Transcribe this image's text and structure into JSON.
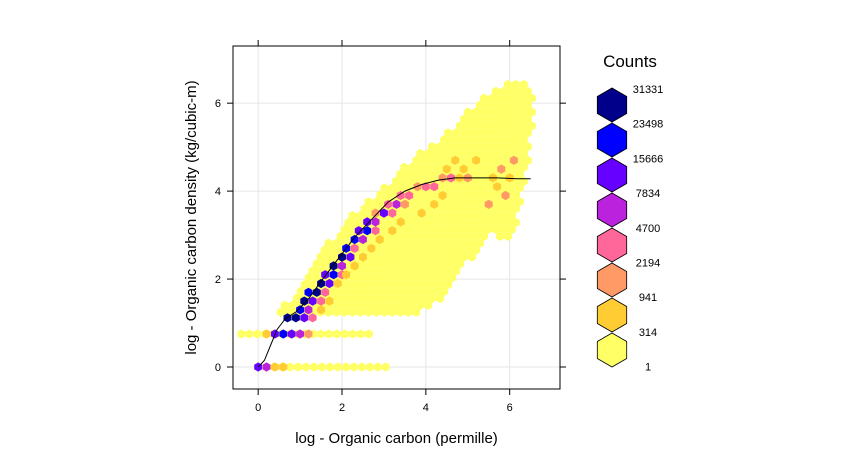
{
  "chart_data": {
    "type": "hexbin",
    "xlabel": "log - Organic carbon (permille)",
    "ylabel": "log - Organic carbon density (kg/cubic-m)",
    "xlim": [
      -0.6,
      7.2
    ],
    "ylim": [
      -0.5,
      7.3
    ],
    "xticks": [
      "0",
      "2",
      "4",
      "6"
    ],
    "xtick_values": [
      0,
      2,
      4,
      6
    ],
    "yticks": [
      "0",
      "2",
      "4",
      "6"
    ],
    "ytick_values": [
      0,
      2,
      4,
      6
    ],
    "grid": true,
    "legend": {
      "title": "Counts",
      "placement": "right",
      "breaks": [
        "31331",
        "23498",
        "15666",
        "7834",
        "4700",
        "2194",
        "941",
        "314",
        "1"
      ],
      "colors": [
        "#00008b",
        "#0000ff",
        "#6600ff",
        "#bb22dd",
        "#ff6699",
        "#ff9966",
        "#ffcc33",
        "#ffff66"
      ]
    },
    "cloud": {
      "description_points_polygon": [
        [
          0.35,
          1.1
        ],
        [
          0.7,
          1.5
        ],
        [
          1.2,
          2.2
        ],
        [
          1.8,
          3.0
        ],
        [
          2.4,
          3.6
        ],
        [
          3.0,
          4.1
        ],
        [
          3.6,
          4.7
        ],
        [
          4.2,
          5.1
        ],
        [
          4.8,
          5.6
        ],
        [
          5.4,
          6.2
        ],
        [
          5.9,
          6.5
        ],
        [
          6.4,
          6.5
        ],
        [
          6.6,
          6.3
        ],
        [
          6.5,
          5.0
        ],
        [
          6.2,
          3.2
        ],
        [
          6.1,
          2.9
        ],
        [
          5.6,
          3.0
        ],
        [
          5.1,
          2.5
        ],
        [
          4.6,
          1.8
        ],
        [
          4.2,
          1.4
        ],
        [
          3.5,
          1.1
        ],
        [
          2.5,
          1.1
        ],
        [
          1.5,
          1.1
        ],
        [
          0.8,
          1.1
        ]
      ],
      "fill_color": "#ffff66"
    },
    "rows": [
      {
        "y": 0.0,
        "x_start": 0.0,
        "x_end": 3.2,
        "color": "#ffff66"
      },
      {
        "y": 0.75,
        "x_start": -0.4,
        "x_end": 2.8,
        "color": "#ffff66"
      }
    ],
    "band": [
      {
        "x": 0.0,
        "y": 0.0,
        "color": "#6600ff"
      },
      {
        "x": 0.2,
        "y": 0.0,
        "color": "#bb22dd"
      },
      {
        "x": 0.4,
        "y": 0.0,
        "color": "#ffcc33"
      },
      {
        "x": 0.6,
        "y": 0.0,
        "color": "#ffcc33"
      },
      {
        "x": 0.2,
        "y": 0.75,
        "color": "#ffcc33"
      },
      {
        "x": 0.4,
        "y": 0.75,
        "color": "#6600ff"
      },
      {
        "x": 0.6,
        "y": 0.75,
        "color": "#0000ff"
      },
      {
        "x": 0.8,
        "y": 0.75,
        "color": "#6600ff"
      },
      {
        "x": 1.0,
        "y": 0.75,
        "color": "#bb22dd"
      },
      {
        "x": 1.2,
        "y": 0.75,
        "color": "#ff9966"
      },
      {
        "x": 0.7,
        "y": 1.12,
        "color": "#00008b"
      },
      {
        "x": 0.9,
        "y": 1.12,
        "color": "#00008b"
      },
      {
        "x": 1.1,
        "y": 1.12,
        "color": "#6600ff"
      },
      {
        "x": 1.3,
        "y": 1.12,
        "color": "#ff6699"
      },
      {
        "x": 1.0,
        "y": 1.3,
        "color": "#0000ff"
      },
      {
        "x": 1.2,
        "y": 1.3,
        "color": "#bb22dd"
      },
      {
        "x": 1.1,
        "y": 1.5,
        "color": "#00008b"
      },
      {
        "x": 1.3,
        "y": 1.5,
        "color": "#6600ff"
      },
      {
        "x": 1.5,
        "y": 1.5,
        "color": "#ff6699"
      },
      {
        "x": 1.2,
        "y": 1.7,
        "color": "#0000ff"
      },
      {
        "x": 1.4,
        "y": 1.7,
        "color": "#00008b"
      },
      {
        "x": 1.6,
        "y": 1.7,
        "color": "#ff6699"
      },
      {
        "x": 1.5,
        "y": 1.9,
        "color": "#00008b"
      },
      {
        "x": 1.7,
        "y": 1.9,
        "color": "#6600ff"
      },
      {
        "x": 1.6,
        "y": 2.1,
        "color": "#6600ff"
      },
      {
        "x": 1.8,
        "y": 2.1,
        "color": "#0000ff"
      },
      {
        "x": 2.0,
        "y": 2.1,
        "color": "#ff6699"
      },
      {
        "x": 1.8,
        "y": 2.3,
        "color": "#00008b"
      },
      {
        "x": 2.0,
        "y": 2.3,
        "color": "#bb22dd"
      },
      {
        "x": 2.0,
        "y": 2.5,
        "color": "#00008b"
      },
      {
        "x": 2.2,
        "y": 2.5,
        "color": "#6600ff"
      },
      {
        "x": 2.1,
        "y": 2.7,
        "color": "#0000ff"
      },
      {
        "x": 2.3,
        "y": 2.7,
        "color": "#ff6699"
      },
      {
        "x": 2.3,
        "y": 2.9,
        "color": "#0000ff"
      },
      {
        "x": 2.5,
        "y": 2.9,
        "color": "#bb22dd"
      },
      {
        "x": 2.4,
        "y": 3.1,
        "color": "#6600ff"
      },
      {
        "x": 2.6,
        "y": 3.1,
        "color": "#0000ff"
      },
      {
        "x": 2.8,
        "y": 3.1,
        "color": "#ff6699"
      },
      {
        "x": 2.6,
        "y": 3.3,
        "color": "#6600ff"
      },
      {
        "x": 2.8,
        "y": 3.3,
        "color": "#bb22dd"
      },
      {
        "x": 2.8,
        "y": 3.5,
        "color": "#ff9966"
      },
      {
        "x": 3.0,
        "y": 3.5,
        "color": "#6600ff"
      },
      {
        "x": 3.2,
        "y": 3.5,
        "color": "#ff6699"
      },
      {
        "x": 3.1,
        "y": 3.7,
        "color": "#ff6699"
      },
      {
        "x": 3.3,
        "y": 3.7,
        "color": "#bb22dd"
      },
      {
        "x": 3.5,
        "y": 3.7,
        "color": "#ff9966"
      },
      {
        "x": 3.4,
        "y": 3.9,
        "color": "#ff6699"
      },
      {
        "x": 3.6,
        "y": 3.9,
        "color": "#ff6699"
      },
      {
        "x": 3.8,
        "y": 4.1,
        "color": "#ff9966"
      },
      {
        "x": 4.0,
        "y": 4.1,
        "color": "#ff6699"
      },
      {
        "x": 4.2,
        "y": 4.1,
        "color": "#ff6699"
      },
      {
        "x": 4.4,
        "y": 4.3,
        "color": "#ff9966"
      },
      {
        "x": 4.6,
        "y": 4.3,
        "color": "#ff6699"
      },
      {
        "x": 4.8,
        "y": 4.3,
        "color": "#ffcc33"
      },
      {
        "x": 4.5,
        "y": 4.5,
        "color": "#ffcc33"
      },
      {
        "x": 4.9,
        "y": 4.5,
        "color": "#ffcc33"
      },
      {
        "x": 5.0,
        "y": 4.3,
        "color": "#ff9966"
      },
      {
        "x": 5.6,
        "y": 4.3,
        "color": "#ffcc33"
      },
      {
        "x": 5.8,
        "y": 4.5,
        "color": "#ff9966"
      },
      {
        "x": 6.0,
        "y": 4.3,
        "color": "#ffcc33"
      },
      {
        "x": 5.7,
        "y": 4.1,
        "color": "#ffcc33"
      },
      {
        "x": 5.9,
        "y": 3.9,
        "color": "#ff9966"
      },
      {
        "x": 5.5,
        "y": 3.7,
        "color": "#ff9966"
      },
      {
        "x": 6.1,
        "y": 4.7,
        "color": "#ff9966"
      },
      {
        "x": 4.2,
        "y": 3.7,
        "color": "#ffcc33"
      },
      {
        "x": 4.4,
        "y": 3.9,
        "color": "#ffcc33"
      },
      {
        "x": 3.9,
        "y": 3.5,
        "color": "#ffcc33"
      },
      {
        "x": 3.4,
        "y": 3.3,
        "color": "#ffcc33"
      },
      {
        "x": 3.2,
        "y": 3.1,
        "color": "#ffcc33"
      },
      {
        "x": 2.9,
        "y": 2.9,
        "color": "#ffcc33"
      },
      {
        "x": 2.7,
        "y": 2.7,
        "color": "#ffcc33"
      },
      {
        "x": 2.5,
        "y": 2.5,
        "color": "#ffcc33"
      },
      {
        "x": 2.3,
        "y": 2.3,
        "color": "#ffcc33"
      },
      {
        "x": 2.1,
        "y": 2.1,
        "color": "#ffcc33"
      },
      {
        "x": 1.9,
        "y": 1.9,
        "color": "#ffcc33"
      },
      {
        "x": 1.7,
        "y": 1.5,
        "color": "#ffcc33"
      },
      {
        "x": 1.5,
        "y": 1.3,
        "color": "#ffcc33"
      },
      {
        "x": 5.2,
        "y": 4.7,
        "color": "#ffcc33"
      },
      {
        "x": 4.7,
        "y": 4.7,
        "color": "#ffcc33"
      }
    ],
    "trend_line": [
      [
        0.0,
        0.0
      ],
      [
        0.15,
        0.15
      ],
      [
        0.3,
        0.5
      ],
      [
        0.45,
        0.85
      ],
      [
        0.65,
        1.1
      ],
      [
        0.9,
        1.25
      ],
      [
        1.2,
        1.55
      ],
      [
        1.5,
        1.95
      ],
      [
        1.9,
        2.45
      ],
      [
        2.3,
        2.95
      ],
      [
        2.7,
        3.35
      ],
      [
        3.1,
        3.75
      ],
      [
        3.5,
        4.0
      ],
      [
        3.9,
        4.15
      ],
      [
        4.3,
        4.25
      ],
      [
        4.7,
        4.3
      ],
      [
        5.2,
        4.3
      ],
      [
        5.7,
        4.3
      ],
      [
        6.2,
        4.28
      ],
      [
        6.5,
        4.28
      ]
    ]
  }
}
